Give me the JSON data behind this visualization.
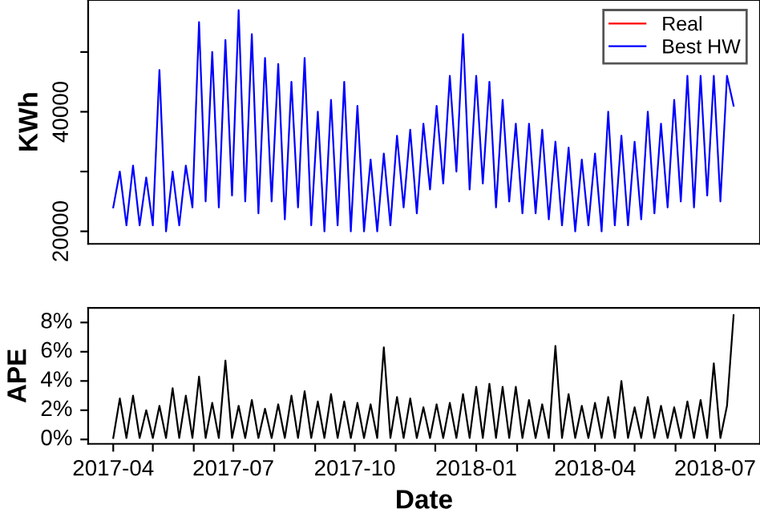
{
  "chart_data": [
    {
      "type": "line",
      "ylabel": "KWh",
      "legend": "top right",
      "tick_labels": "y",
      "grid": false,
      "xlim": [
        "2017-03-13",
        "2018-08-04"
      ],
      "ylim": [
        17900,
        58700
      ],
      "yticks": [
        20000,
        {
          "value": 30000,
          "label": null
        },
        40000,
        {
          "value": 50000,
          "label": null
        }
      ],
      "x": [
        "2017-04-01",
        "2017-04-06",
        "2017-04-11",
        "2017-04-16",
        "2017-04-21",
        "2017-04-26",
        "2017-05-01",
        "2017-05-06",
        "2017-05-11",
        "2017-05-16",
        "2017-05-21",
        "2017-05-26",
        "2017-05-31",
        "2017-06-05",
        "2017-06-10",
        "2017-06-15",
        "2017-06-20",
        "2017-06-25",
        "2017-06-30",
        "2017-07-05",
        "2017-07-10",
        "2017-07-15",
        "2017-07-20",
        "2017-07-25",
        "2017-07-30",
        "2017-08-04",
        "2017-08-09",
        "2017-08-14",
        "2017-08-19",
        "2017-08-24",
        "2017-08-29",
        "2017-09-03",
        "2017-09-08",
        "2017-09-13",
        "2017-09-18",
        "2017-09-23",
        "2017-09-28",
        "2017-10-03",
        "2017-10-08",
        "2017-10-13",
        "2017-10-18",
        "2017-10-23",
        "2017-10-28",
        "2017-11-02",
        "2017-11-07",
        "2017-11-12",
        "2017-11-17",
        "2017-11-22",
        "2017-11-27",
        "2017-12-02",
        "2017-12-07",
        "2017-12-12",
        "2017-12-17",
        "2017-12-22",
        "2017-12-27",
        "2018-01-01",
        "2018-01-06",
        "2018-01-11",
        "2018-01-16",
        "2018-01-21",
        "2018-01-26",
        "2018-01-31",
        "2018-02-05",
        "2018-02-10",
        "2018-02-15",
        "2018-02-20",
        "2018-02-25",
        "2018-03-02",
        "2018-03-07",
        "2018-03-12",
        "2018-03-17",
        "2018-03-22",
        "2018-03-27",
        "2018-04-01",
        "2018-04-06",
        "2018-04-11",
        "2018-04-16",
        "2018-04-21",
        "2018-04-26",
        "2018-05-01",
        "2018-05-06",
        "2018-05-11",
        "2018-05-16",
        "2018-05-21",
        "2018-05-26",
        "2018-05-31",
        "2018-06-05",
        "2018-06-10",
        "2018-06-15",
        "2018-06-20",
        "2018-06-25",
        "2018-06-30",
        "2018-07-05",
        "2018-07-10",
        "2018-07-15"
      ],
      "series": [
        {
          "name": "Real",
          "color": "#ff0000",
          "values": [
            null,
            null,
            null,
            null,
            null,
            null,
            null,
            null,
            null,
            null,
            null,
            null,
            null,
            null,
            null,
            null,
            null,
            null,
            null,
            null,
            null,
            null,
            null,
            null,
            null,
            null,
            null,
            null,
            null,
            null,
            null,
            null,
            null,
            null,
            null,
            null,
            null,
            null,
            null,
            null,
            null,
            null,
            null,
            null,
            null,
            null,
            null,
            null,
            null,
            null,
            null,
            null,
            null,
            null,
            null,
            null,
            null,
            null,
            null,
            null,
            null,
            null,
            null,
            null,
            null,
            null,
            null,
            null,
            null,
            null,
            null,
            null,
            null,
            null,
            null,
            null,
            null,
            null,
            null,
            null,
            null,
            null,
            null,
            null,
            null,
            null,
            null,
            null,
            null,
            null,
            null,
            null,
            null,
            null,
            null
          ]
        },
        {
          "name": "Best HW",
          "color": "#0000ff",
          "values": [
            24000,
            30000,
            21000,
            31000,
            21000,
            29000,
            21000,
            47000,
            20000,
            30000,
            21000,
            31000,
            24000,
            55000,
            25000,
            50000,
            24000,
            52000,
            26000,
            57000,
            25000,
            53000,
            23000,
            49000,
            25000,
            48000,
            22000,
            45000,
            24000,
            49000,
            21000,
            40000,
            20000,
            42000,
            21000,
            45000,
            20000,
            41000,
            20000,
            32000,
            20000,
            33000,
            21000,
            36000,
            24000,
            37000,
            23000,
            38000,
            27000,
            41000,
            28000,
            46000,
            30000,
            53000,
            27000,
            46000,
            28000,
            45000,
            24000,
            42000,
            25000,
            38000,
            23000,
            38000,
            23000,
            37000,
            22000,
            35000,
            21000,
            34000,
            20000,
            32000,
            21000,
            33000,
            20000,
            40000,
            21000,
            36000,
            21000,
            35000,
            22000,
            40000,
            23000,
            38000,
            24000,
            42000,
            25000,
            46000,
            24000,
            46000,
            26000,
            46000,
            25000,
            46000,
            41000
          ]
        }
      ]
    },
    {
      "type": "line",
      "xlabel": "Date",
      "ylabel": "APE",
      "grid": false,
      "xlim": [
        "2017-03-13",
        "2018-08-04"
      ],
      "ylim": [
        -0.3,
        9
      ],
      "xticks": [
        {
          "value": "2017-04-01",
          "label": "2017-04"
        },
        {
          "value": "2017-05-01",
          "label": null
        },
        {
          "value": "2017-06-01",
          "label": null
        },
        {
          "value": "2017-07-01",
          "label": "2017-07"
        },
        {
          "value": "2017-08-01",
          "label": null
        },
        {
          "value": "2017-09-01",
          "label": null
        },
        {
          "value": "2017-10-01",
          "label": "2017-10"
        },
        {
          "value": "2017-11-01",
          "label": null
        },
        {
          "value": "2017-12-01",
          "label": null
        },
        {
          "value": "2018-01-01",
          "label": "2018-01"
        },
        {
          "value": "2018-02-01",
          "label": null
        },
        {
          "value": "2018-03-01",
          "label": null
        },
        {
          "value": "2018-04-01",
          "label": "2018-04"
        },
        {
          "value": "2018-05-01",
          "label": null
        },
        {
          "value": "2018-06-01",
          "label": null
        },
        {
          "value": "2018-07-01",
          "label": "2018-07"
        }
      ],
      "yticks": [
        {
          "value": 0,
          "label": "0%"
        },
        {
          "value": 2,
          "label": "2%"
        },
        {
          "value": 4,
          "label": "4%"
        },
        {
          "value": 6,
          "label": "6%"
        },
        {
          "value": 8,
          "label": "8%"
        }
      ],
      "x": [
        "2017-04-01",
        "2017-04-06",
        "2017-04-11",
        "2017-04-16",
        "2017-04-21",
        "2017-04-26",
        "2017-05-01",
        "2017-05-06",
        "2017-05-11",
        "2017-05-16",
        "2017-05-21",
        "2017-05-26",
        "2017-05-31",
        "2017-06-05",
        "2017-06-10",
        "2017-06-15",
        "2017-06-20",
        "2017-06-25",
        "2017-06-30",
        "2017-07-05",
        "2017-07-10",
        "2017-07-15",
        "2017-07-20",
        "2017-07-25",
        "2017-07-30",
        "2017-08-04",
        "2017-08-09",
        "2017-08-14",
        "2017-08-19",
        "2017-08-24",
        "2017-08-29",
        "2017-09-03",
        "2017-09-08",
        "2017-09-13",
        "2017-09-18",
        "2017-09-23",
        "2017-09-28",
        "2017-10-03",
        "2017-10-08",
        "2017-10-13",
        "2017-10-18",
        "2017-10-23",
        "2017-10-28",
        "2017-11-02",
        "2017-11-07",
        "2017-11-12",
        "2017-11-17",
        "2017-11-22",
        "2017-11-27",
        "2017-12-02",
        "2017-12-07",
        "2017-12-12",
        "2017-12-17",
        "2017-12-22",
        "2017-12-27",
        "2018-01-01",
        "2018-01-06",
        "2018-01-11",
        "2018-01-16",
        "2018-01-21",
        "2018-01-26",
        "2018-01-31",
        "2018-02-05",
        "2018-02-10",
        "2018-02-15",
        "2018-02-20",
        "2018-02-25",
        "2018-03-02",
        "2018-03-07",
        "2018-03-12",
        "2018-03-17",
        "2018-03-22",
        "2018-03-27",
        "2018-04-01",
        "2018-04-06",
        "2018-04-11",
        "2018-04-16",
        "2018-04-21",
        "2018-04-26",
        "2018-05-01",
        "2018-05-06",
        "2018-05-11",
        "2018-05-16",
        "2018-05-21",
        "2018-05-26",
        "2018-05-31",
        "2018-06-05",
        "2018-06-10",
        "2018-06-15",
        "2018-06-20",
        "2018-06-25",
        "2018-06-30",
        "2018-07-05",
        "2018-07-10",
        "2018-07-15"
      ],
      "series": [
        {
          "color": "#000000",
          "values": [
            0.1,
            2.8,
            0.1,
            3.0,
            0.1,
            2.0,
            0.1,
            2.3,
            0.1,
            3.5,
            0.1,
            3.0,
            0.1,
            4.3,
            0.1,
            2.5,
            0.1,
            5.4,
            0.1,
            2.3,
            0.1,
            2.7,
            0.1,
            2.1,
            0.1,
            2.4,
            0.1,
            3.0,
            0.1,
            3.3,
            0.1,
            2.6,
            0.1,
            3.1,
            0.1,
            2.6,
            0.1,
            2.5,
            0.1,
            2.4,
            0.1,
            6.3,
            0.1,
            2.9,
            0.1,
            2.8,
            0.1,
            2.2,
            0.1,
            2.4,
            0.1,
            2.5,
            0.1,
            3.1,
            0.1,
            3.6,
            0.1,
            3.8,
            0.1,
            3.6,
            0.1,
            3.6,
            0.1,
            2.7,
            0.1,
            2.4,
            0.1,
            6.4,
            0.1,
            3.1,
            0.1,
            2.3,
            0.1,
            2.5,
            0.1,
            2.9,
            0.1,
            4.0,
            0.1,
            2.2,
            0.1,
            2.9,
            0.1,
            2.3,
            0.1,
            2.2,
            0.1,
            2.6,
            0.1,
            2.7,
            0.1,
            5.2,
            0.1,
            2.3,
            8.5
          ]
        }
      ]
    }
  ]
}
